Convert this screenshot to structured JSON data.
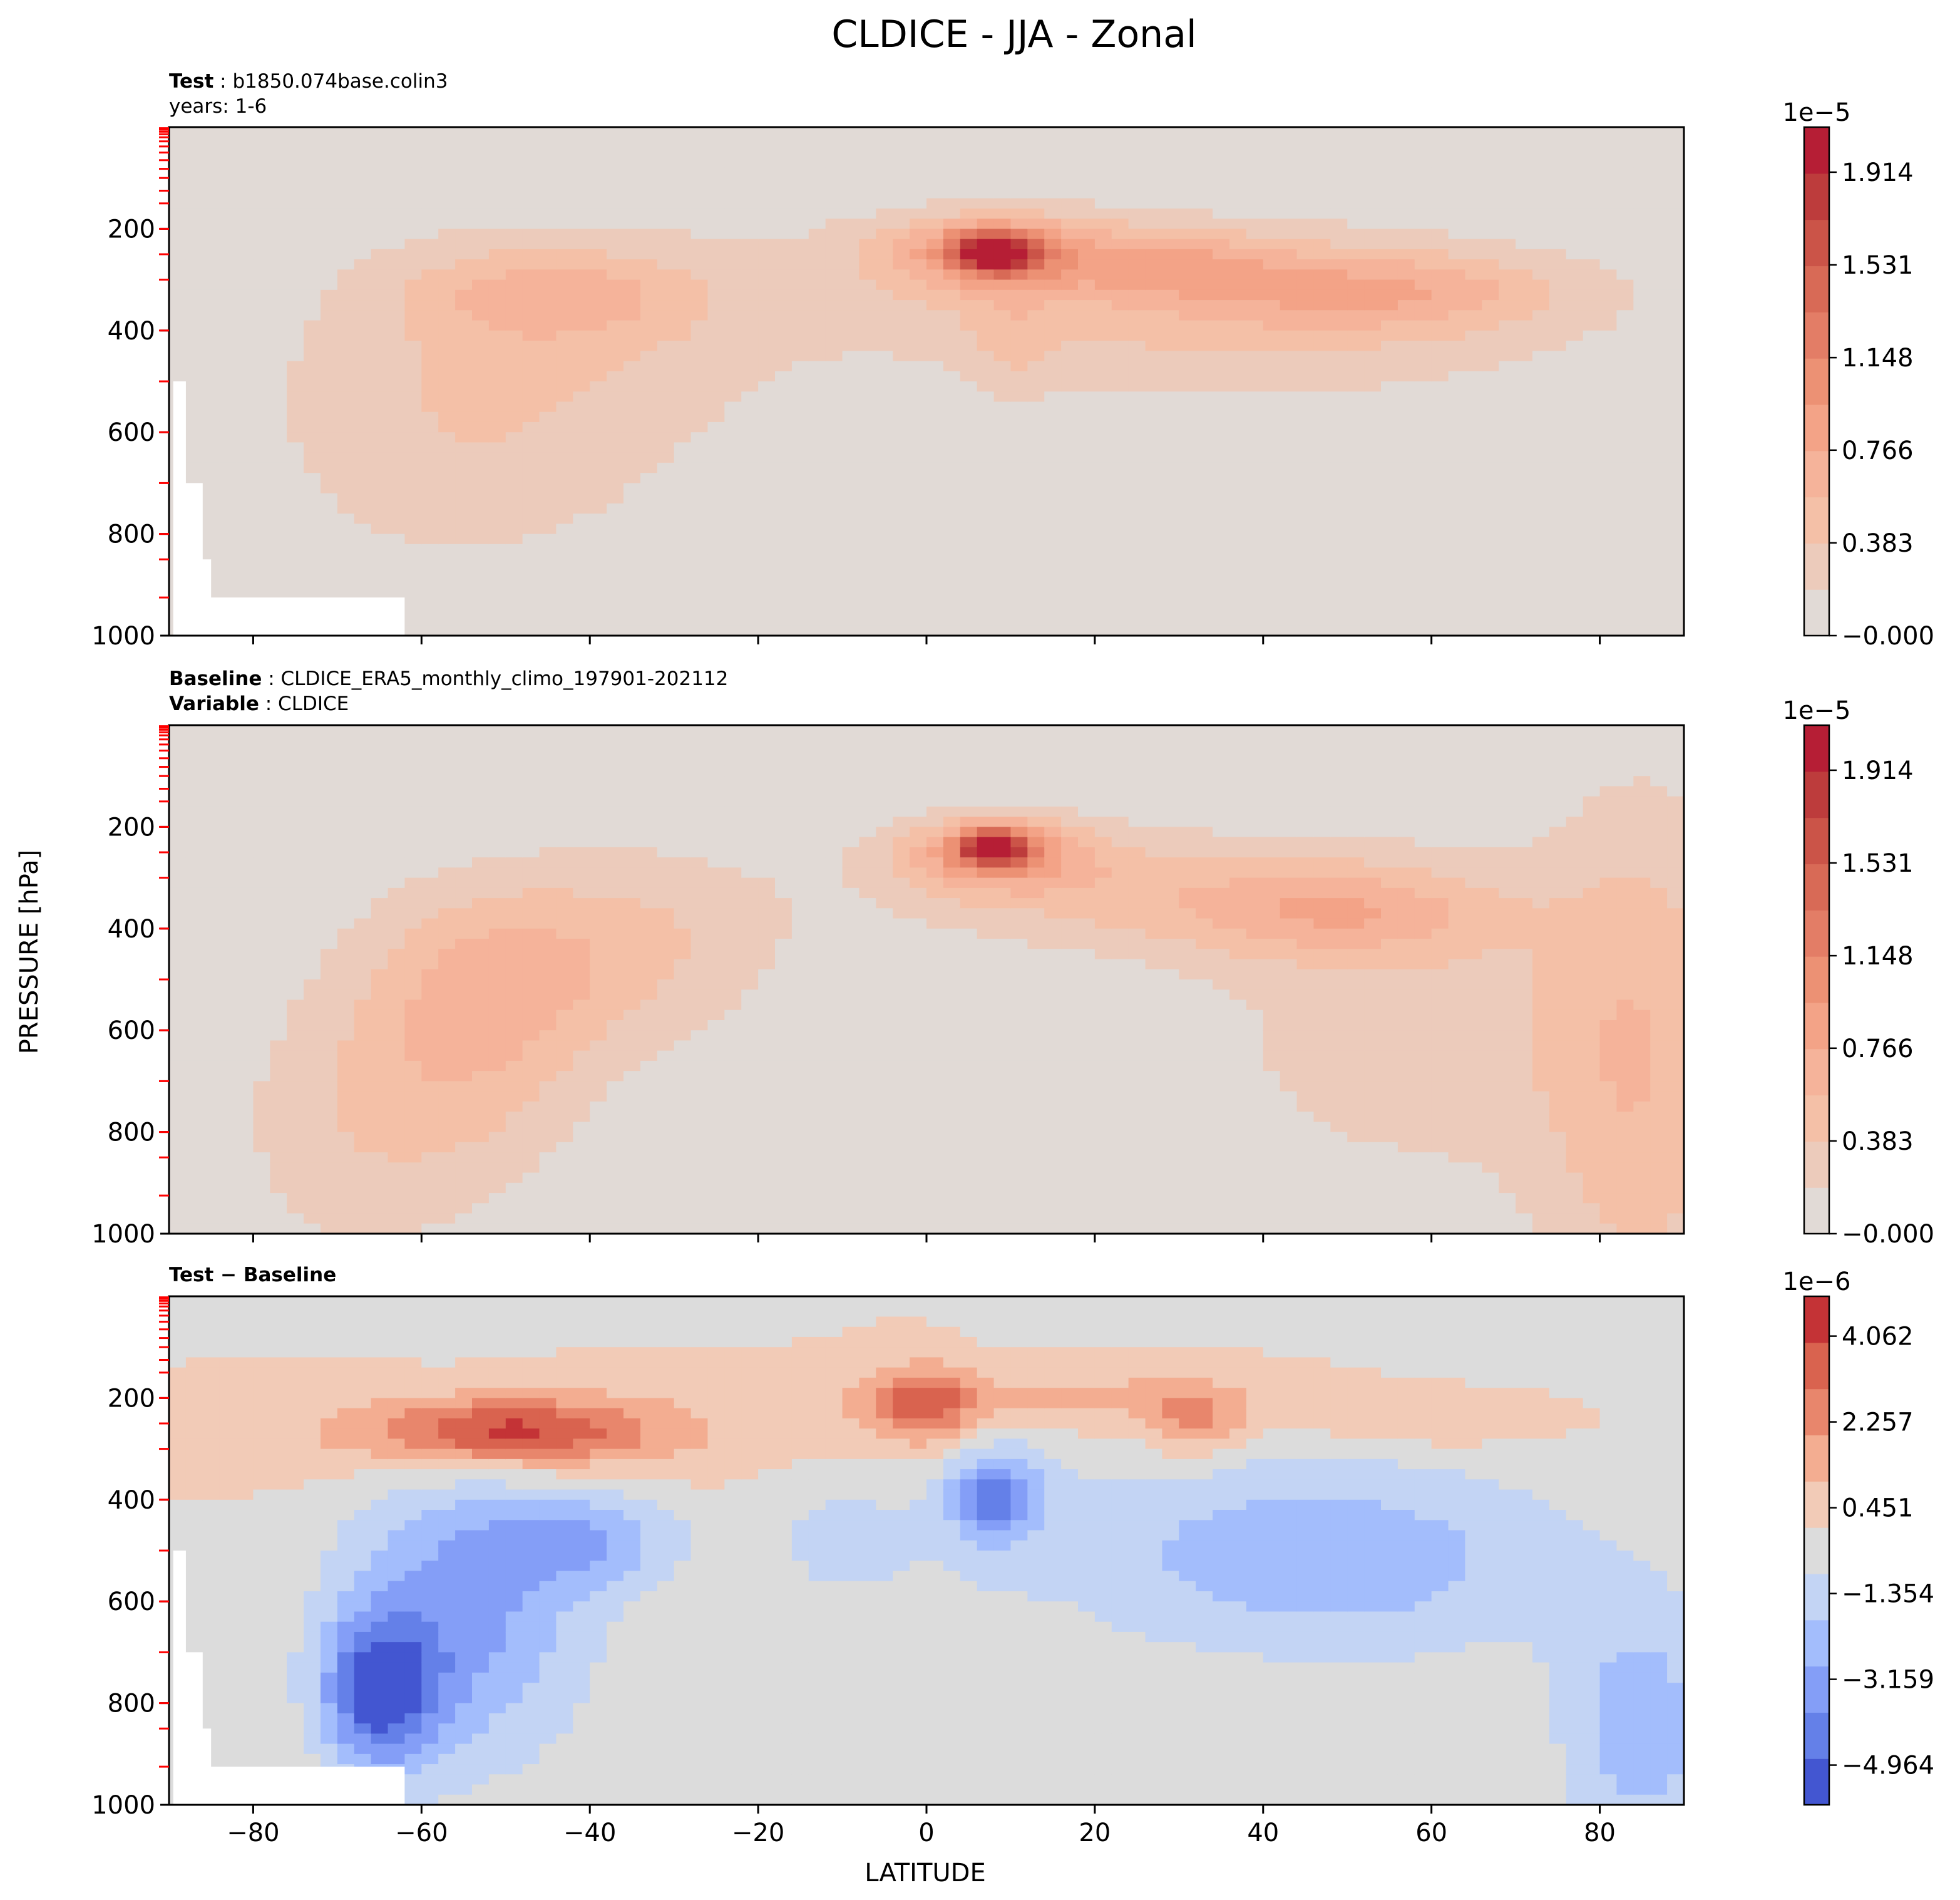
{
  "figure": {
    "title": "CLDICE - JJA - Zonal",
    "xlabel": "LATITUDE",
    "ylabel": "PRESSURE [hPa]"
  },
  "panels": [
    {
      "header_line1_key": "Test",
      "header_line1_value": "b1850.074base.colin3",
      "header_line2_key": "",
      "header_line2_value": "years: 1-6",
      "colorbar_exponent": "1e−5",
      "colorbar_ticks": [
        "−0.000",
        "0.383",
        "0.766",
        "1.148",
        "1.531",
        "1.914"
      ]
    },
    {
      "header_line1_key": "Baseline",
      "header_line1_value": "CLDICE_ERA5_monthly_climo_197901-202112",
      "header_line2_key": "Variable",
      "header_line2_value": "CLDICE",
      "colorbar_exponent": "1e−5",
      "colorbar_ticks": [
        "−0.000",
        "0.383",
        "0.766",
        "1.148",
        "1.531",
        "1.914"
      ]
    },
    {
      "header_line1_key": "Test − Baseline",
      "header_line1_value": "",
      "header_line2_key": "",
      "header_line2_value": "",
      "colorbar_exponent": "1e−6",
      "colorbar_ticks": [
        "−4.964",
        "−3.159",
        "−1.354",
        "0.451",
        "2.257",
        "4.062"
      ]
    }
  ],
  "chart_data": [
    {
      "type": "heatmap",
      "panel": "Test",
      "xlabel": "LATITUDE",
      "ylabel": "PRESSURE [hPa]",
      "xlim": [
        -90,
        90
      ],
      "ylim": [
        1000,
        0
      ],
      "x_ticks": [
        -80,
        -60,
        -40,
        -20,
        0,
        20,
        40,
        60,
        80
      ],
      "y_ticks": [
        200,
        400,
        600,
        800,
        1000
      ],
      "units_scale": 1e-05,
      "colormap": "coolwarm (upper half)",
      "color_range": [
        0.0,
        2.1
      ],
      "features": [
        {
          "lat": 8,
          "p": 245,
          "value": 1.85
        },
        {
          "lat": -45,
          "p": 330,
          "value": 0.6
        },
        {
          "lat": 55,
          "p": 320,
          "value": 0.65
        }
      ]
    },
    {
      "type": "heatmap",
      "panel": "Baseline",
      "xlabel": "LATITUDE",
      "ylabel": "PRESSURE [hPa]",
      "xlim": [
        -90,
        90
      ],
      "ylim": [
        1000,
        0
      ],
      "x_ticks": [
        -80,
        -60,
        -40,
        -20,
        0,
        20,
        40,
        60,
        80
      ],
      "y_ticks": [
        200,
        400,
        600,
        800,
        1000
      ],
      "units_scale": 1e-05,
      "colormap": "coolwarm (upper half)",
      "color_range": [
        0.0,
        2.1
      ],
      "features": [
        {
          "lat": 8,
          "p": 240,
          "value": 2.0
        },
        {
          "lat": -50,
          "p": 480,
          "value": 0.8
        },
        {
          "lat": 50,
          "p": 370,
          "value": 0.75
        }
      ]
    },
    {
      "type": "heatmap",
      "panel": "Test − Baseline",
      "xlabel": "LATITUDE",
      "ylabel": "PRESSURE [hPa]",
      "xlim": [
        -90,
        90
      ],
      "ylim": [
        1000,
        0
      ],
      "x_ticks": [
        -80,
        -60,
        -40,
        -20,
        0,
        20,
        40,
        60,
        80
      ],
      "y_ticks": [
        200,
        400,
        600,
        800,
        1000
      ],
      "units_scale": 1e-06,
      "colormap": "coolwarm",
      "color_range": [
        -5.8,
        4.9
      ],
      "features": [
        {
          "lat": -50,
          "p": 265,
          "value": 3.0
        },
        {
          "lat": 0,
          "p": 210,
          "value": 2.5
        },
        {
          "lat": -65,
          "p": 780,
          "value": -5.0
        },
        {
          "lat": 8,
          "p": 400,
          "value": -3.0
        }
      ]
    }
  ]
}
